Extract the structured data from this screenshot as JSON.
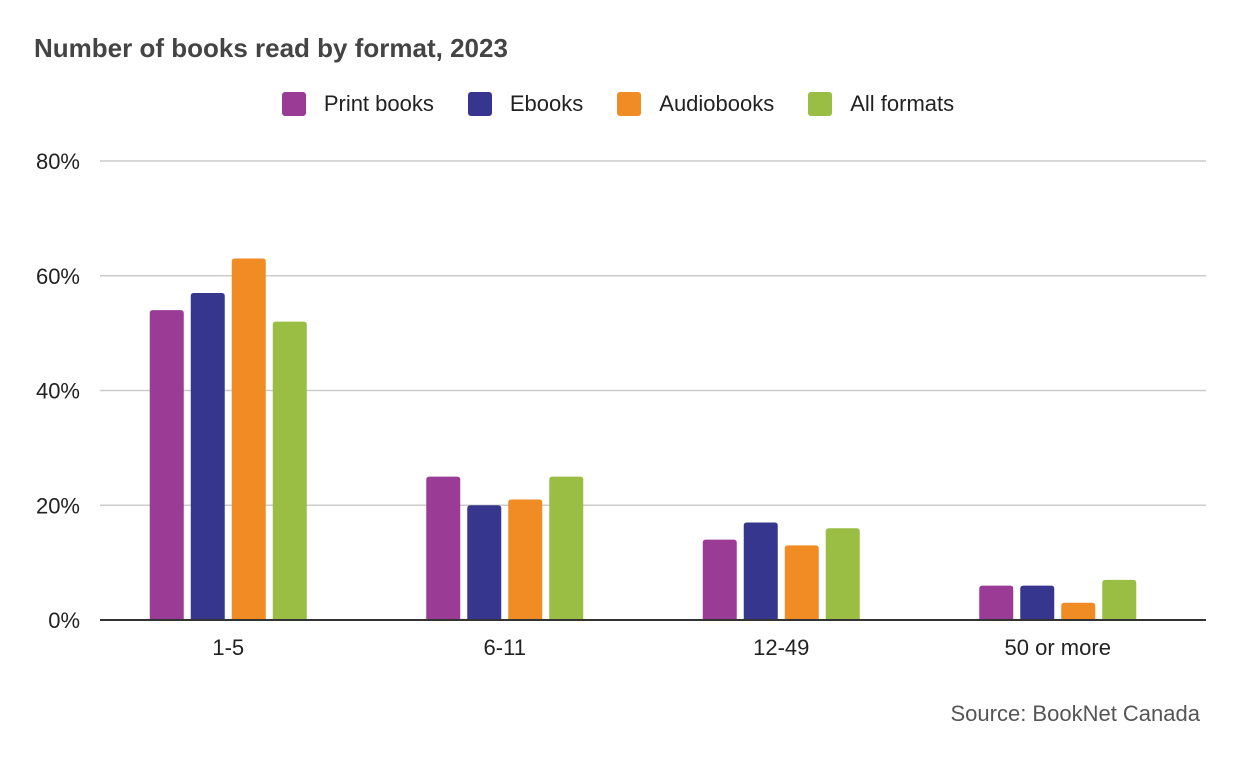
{
  "chart_data": {
    "type": "bar",
    "title": "Number of books read by format, 2023",
    "categories": [
      "1-5",
      "6-11",
      "12-49",
      "50 or more"
    ],
    "series": [
      {
        "name": "Print books",
        "values": [
          54,
          25,
          14,
          6
        ],
        "color": "#9a3c96"
      },
      {
        "name": "Ebooks",
        "values": [
          57,
          20,
          17,
          6
        ],
        "color": "#37368f"
      },
      {
        "name": "Audiobooks",
        "values": [
          63,
          21,
          13,
          3
        ],
        "color": "#f08c23"
      },
      {
        "name": "All formats",
        "values": [
          52,
          25,
          16,
          7
        ],
        "color": "#9abe44"
      }
    ],
    "ylim": [
      0,
      80
    ],
    "yticks": [
      0,
      20,
      40,
      60,
      80
    ],
    "ytick_labels": [
      "0%",
      "20%",
      "40%",
      "60%",
      "80%"
    ],
    "xlabel": "",
    "ylabel": "",
    "grid": true,
    "legend_position": "top-center",
    "source": "Source: BookNet Canada"
  }
}
